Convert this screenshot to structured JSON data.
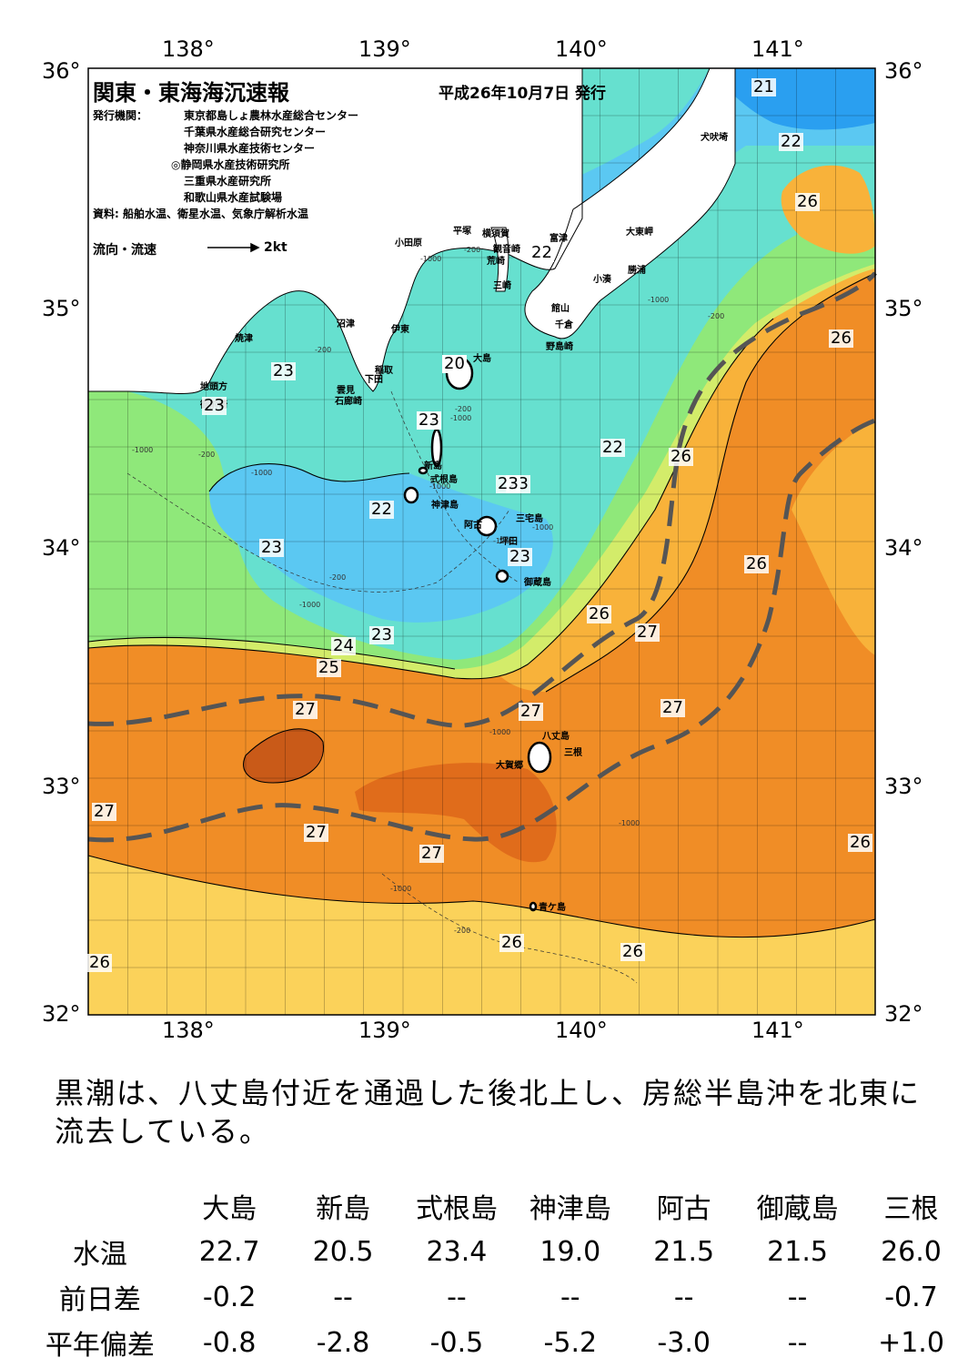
{
  "map": {
    "title": "関東・東海海沉速報",
    "date": "平成26年10月7日 発行",
    "issuer_label": "発行機関：",
    "issuers": [
      "東京都島しょ農林水産総合センター",
      "千葉県水産総合研究センター",
      "神奈川県水産技術センター",
      "◎静岡県水産技術研究所",
      "三重県水産研究所",
      "和歌山県水産試験場"
    ],
    "source": "資料: 船舶水温、衛星水温、気象庁解析水温",
    "current_legend": "流向・流速",
    "current_scale": "2kt",
    "lon_labels": [
      "138°",
      "139°",
      "140°",
      "141°"
    ],
    "lat_labels": [
      "36°",
      "35°",
      "34°",
      "33°",
      "32°"
    ],
    "places": [
      "小田原",
      "平塚",
      "横須賀",
      "観音崎",
      "富津",
      "荒崎",
      "三崎",
      "大東岬",
      "勝浦",
      "小湊",
      "館山",
      "千倉",
      "野島崎",
      "犬吠埼",
      "沼津",
      "伊東",
      "稲取",
      "下田",
      "雲見",
      "石廊崎",
      "焼津",
      "地頭方",
      "御前崎",
      "大島",
      "新島",
      "式根島",
      "神津島",
      "三宅島",
      "阿古",
      "坪田",
      "御蔵島",
      "八丈島",
      "三根",
      "大賀郷",
      "青ケ島"
    ],
    "isotherms": [
      "21",
      "22",
      "22",
      "26",
      "23",
      "23",
      "22",
      "22",
      "22",
      "26",
      "26",
      "22",
      "23",
      "23",
      "23",
      "23",
      "26",
      "26",
      "27",
      "24",
      "25",
      "27",
      "27",
      "27",
      "27",
      "27",
      "27",
      "26",
      "26",
      "26",
      "26",
      "20",
      "23",
      "23"
    ],
    "depth_labels": [
      "-1000",
      "-200",
      "-1000",
      "-200",
      "-1000",
      "-200",
      "-1000",
      "-200",
      "-200",
      "-1000",
      "-1000",
      "-1000",
      "-1000",
      "-1000",
      "-1000",
      "-200",
      "-1000",
      "-1000",
      "-200"
    ],
    "colors": {
      "t21": "#2a9ff0",
      "t22": "#5bc8f2",
      "t23": "#66e0cf",
      "t24": "#8fe87a",
      "t25": "#d3ec6a",
      "t26": "#fbd25a",
      "t26b": "#f8b23a",
      "t27": "#f08d26",
      "t28": "#e06c1b",
      "t29": "#c95a18",
      "land": "#ffffff",
      "kuroshio_axis": "#555555"
    }
  },
  "summary": "黒潮は、八丈島付近を通過した後北上し、房総半島沖を北東に流去している。",
  "stats": {
    "columns": [
      "大島",
      "新島",
      "式根島",
      "神津島",
      "阿古",
      "御蔵島",
      "三根"
    ],
    "rows": [
      {
        "label": "水温",
        "values": [
          "22.7",
          "20.5",
          "23.4",
          "19.0",
          "21.5",
          "21.5",
          "26.0"
        ]
      },
      {
        "label": "前日差",
        "values": [
          "-0.2",
          "--",
          "--",
          "--",
          "--",
          "--",
          "-0.7"
        ]
      },
      {
        "label": "平年偏差",
        "values": [
          "-0.8",
          "-2.8",
          "-0.5",
          "-5.2",
          "-3.0",
          "--",
          "+1.0"
        ]
      }
    ]
  }
}
